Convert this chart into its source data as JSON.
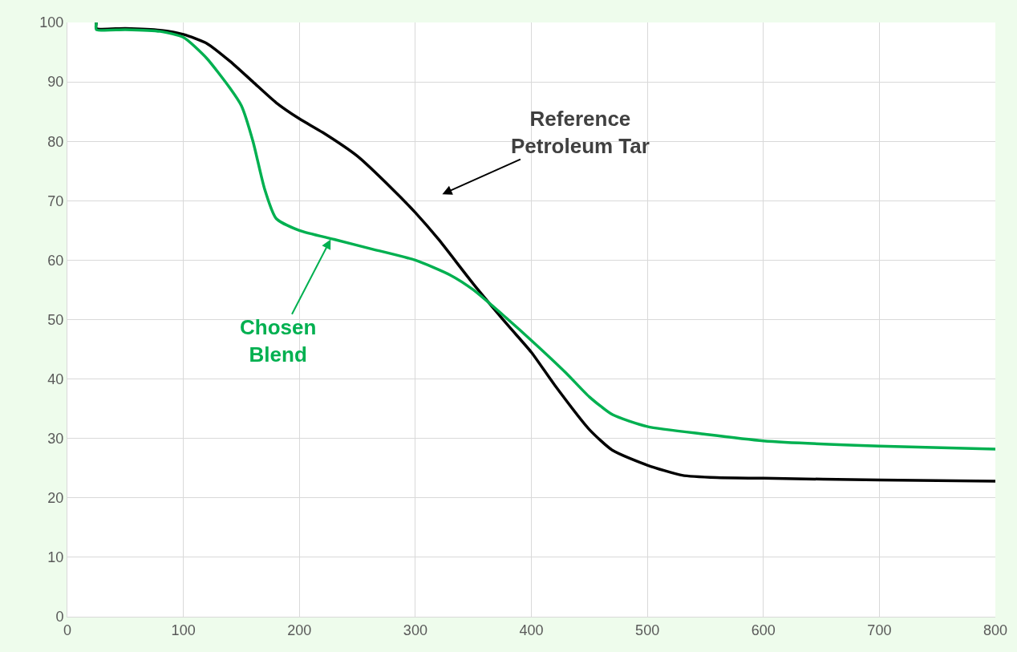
{
  "chart_data": {
    "type": "line",
    "xlim": [
      0,
      800
    ],
    "xticks": [
      0,
      100,
      200,
      300,
      400,
      500,
      600,
      700,
      800
    ],
    "ylim": [
      0,
      100
    ],
    "yticks": [
      0,
      10,
      20,
      30,
      40,
      50,
      60,
      70,
      80,
      90,
      100
    ],
    "grid": true,
    "marker": "none",
    "line_style": "solid",
    "series": [
      {
        "color": "#000000",
        "x": [
          25,
          25,
          50,
          80,
          100,
          120,
          140,
          160,
          180,
          200,
          220,
          250,
          280,
          300,
          320,
          350,
          380,
          400,
          420,
          450,
          470,
          500,
          530,
          560,
          600,
          700,
          800
        ],
        "values": [
          100,
          99,
          99,
          98.7,
          98,
          96.5,
          93.5,
          90,
          86.5,
          83.8,
          81.5,
          77.5,
          72,
          68,
          63.5,
          56,
          49,
          44.5,
          39,
          31.5,
          28,
          25.5,
          23.8,
          23.4,
          23.3,
          23,
          22.8
        ]
      },
      {
        "color": "#00b050",
        "x": [
          25,
          25,
          50,
          80,
          100,
          120,
          140,
          150,
          160,
          170,
          180,
          200,
          230,
          260,
          300,
          330,
          350,
          380,
          400,
          430,
          450,
          470,
          500,
          550,
          600,
          700,
          800
        ],
        "values": [
          100,
          98.8,
          98.8,
          98.5,
          97.5,
          94,
          89,
          86,
          80,
          72,
          67,
          65,
          63.5,
          62,
          60,
          57.5,
          55,
          50,
          46.5,
          41,
          37,
          34,
          32,
          30.7,
          29.6,
          28.7,
          28.2
        ]
      }
    ],
    "annotations": [
      "Reference\nPetroleum Tar",
      {
        "text": "Chosen\nBlend",
        "x": 227,
        "y": 63.5
      }
    ]
  }
}
